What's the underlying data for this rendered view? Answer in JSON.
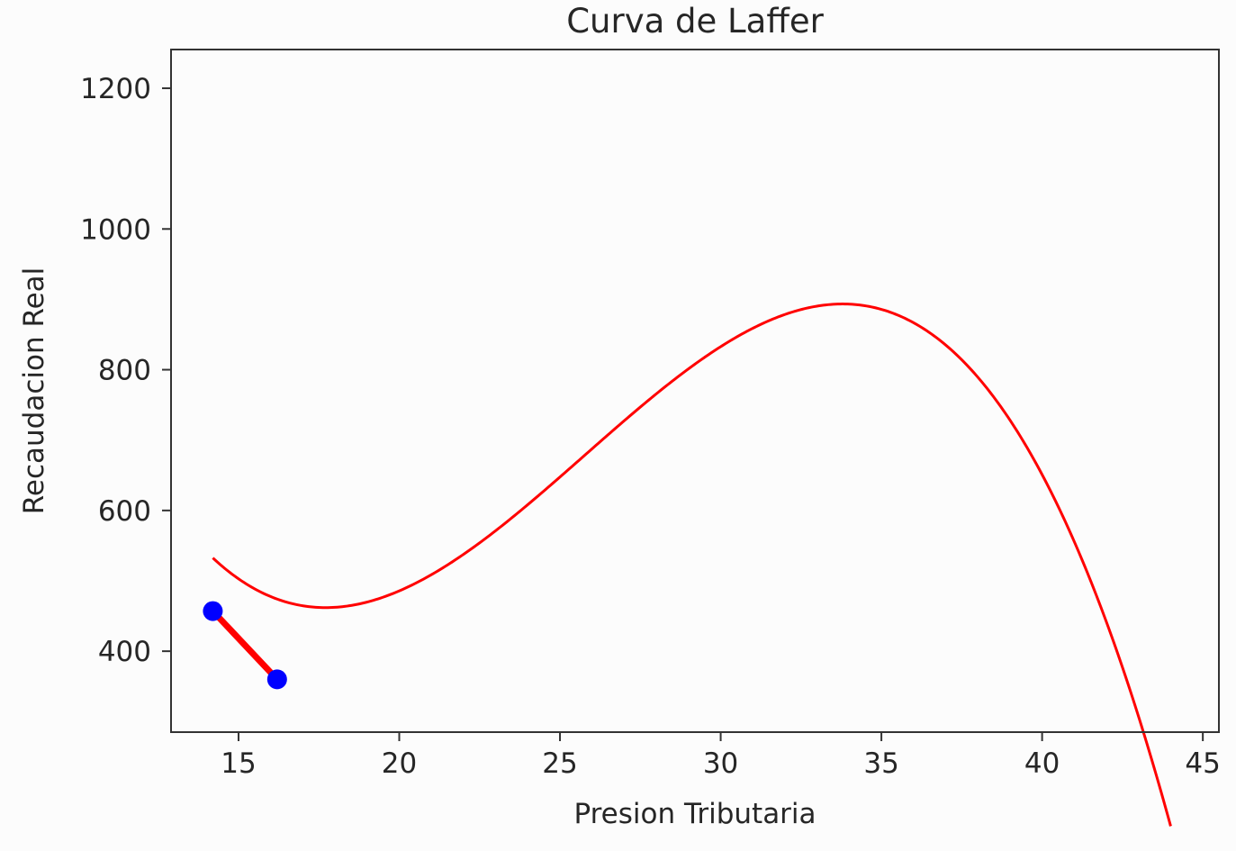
{
  "chart_data": {
    "type": "line",
    "title": "Curva de Laffer",
    "xlabel": "Presion Tributaria",
    "ylabel": "Recaudacion Real",
    "xlim": [
      12.9,
      45.5
    ],
    "ylim": [
      285,
      1255
    ],
    "xticks": [
      15,
      20,
      25,
      30,
      35,
      40,
      45
    ],
    "yticks": [
      400,
      600,
      800,
      1000,
      1200
    ],
    "grid": false,
    "legend": null,
    "colors": {
      "curve": "#ff0000",
      "points": "#0000ff",
      "axes": "#333333",
      "background": "#fcfcfc"
    },
    "curve": {
      "model": "cubic",
      "x_start": 14.2,
      "x_end": 44.0,
      "coefficients": [
        3183.88,
        -372.456,
        16.0264,
        -0.207452
      ]
    },
    "highlight_segment": {
      "x": [
        14.2,
        16.2
      ],
      "y": [
        457,
        360
      ]
    },
    "points": [
      {
        "x": 14.2,
        "y": 457
      },
      {
        "x": 16.2,
        "y": 360
      }
    ]
  }
}
